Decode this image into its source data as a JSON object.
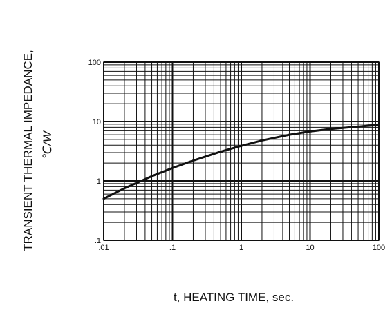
{
  "chart_data": {
    "type": "line",
    "title": "",
    "xlabel": "t, HEATING TIME, sec.",
    "ylabel": "TRANSIENT THERMAL IMPEDANCE,",
    "ylabel_unit": "℃/W",
    "x_scale": "log",
    "y_scale": "log",
    "xlim": [
      0.01,
      100
    ],
    "ylim": [
      0.1,
      100
    ],
    "x_ticks": [
      {
        "value": 0.01,
        "label": ".01"
      },
      {
        "value": 0.1,
        "label": ".1"
      },
      {
        "value": 1,
        "label": "1"
      },
      {
        "value": 10,
        "label": "10"
      },
      {
        "value": 100,
        "label": "100"
      }
    ],
    "y_ticks": [
      {
        "value": 0.1,
        "label": ".1"
      },
      {
        "value": 1,
        "label": "1"
      },
      {
        "value": 10,
        "label": "10"
      },
      {
        "value": 100,
        "label": "100"
      }
    ],
    "grid": true,
    "legend": "none",
    "series": [
      {
        "x": [
          0.01,
          0.02,
          0.05,
          0.1,
          0.2,
          0.5,
          1,
          2,
          5,
          10,
          20,
          50,
          100
        ],
        "y": [
          0.5,
          0.75,
          1.2,
          1.65,
          2.2,
          3.1,
          3.9,
          4.8,
          6.0,
          6.8,
          7.5,
          8.2,
          8.8
        ]
      }
    ],
    "colors": {
      "line": "#111111",
      "grid": "#111111",
      "background": "#ffffff"
    }
  }
}
